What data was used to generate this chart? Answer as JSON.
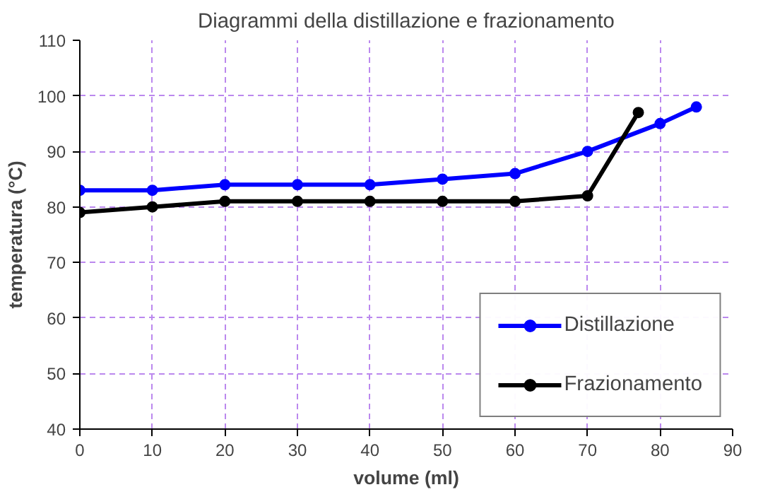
{
  "chart_data": {
    "type": "line",
    "title": "Diagrammi della distillazione e frazionamento",
    "xlabel": "volume (ml)",
    "ylabel": "temperatura (°C)",
    "xlim": [
      0,
      90
    ],
    "xticks": [
      0,
      10,
      20,
      30,
      40,
      50,
      60,
      70,
      80,
      90
    ],
    "ylim": [
      40,
      110
    ],
    "yticks": [
      40,
      50,
      60,
      70,
      80,
      90,
      100,
      110
    ],
    "grid": true,
    "legend": "bottom right",
    "marker": "circle",
    "line_style": "solid",
    "series": [
      {
        "name": "Distillazione",
        "color": "#0000ff",
        "x": [
          0,
          10,
          20,
          30,
          40,
          50,
          60,
          70,
          80,
          85
        ],
        "values": [
          83,
          83,
          84,
          84,
          84,
          85,
          86,
          90,
          95,
          98
        ]
      },
      {
        "name": "Frazionamento",
        "color": "#000000",
        "x": [
          0,
          10,
          20,
          30,
          40,
          50,
          60,
          70,
          77
        ],
        "values": [
          79,
          80,
          81,
          81,
          81,
          81,
          81,
          82,
          97
        ]
      }
    ]
  }
}
